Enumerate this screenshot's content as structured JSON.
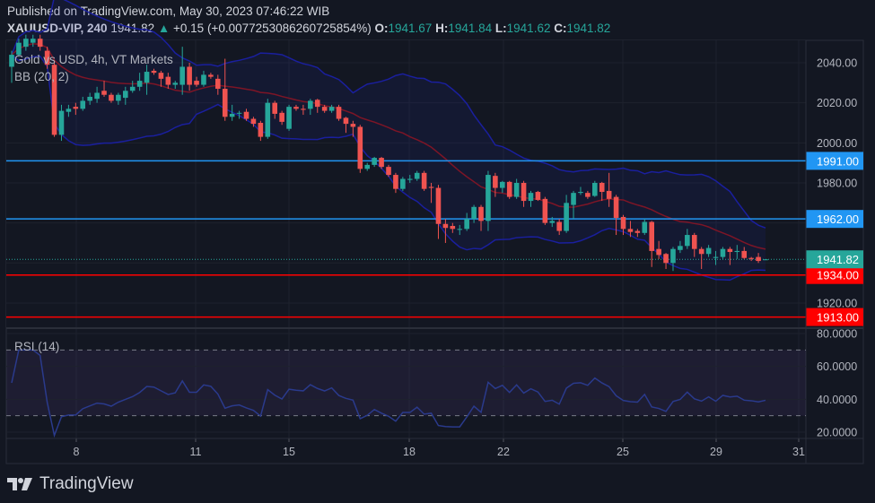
{
  "header": {
    "published": "Published on TradingView.com, May 30, 2023 07:46:22 WIB",
    "symbol": "XAUUSD-VIP, 240",
    "last": "1941.82",
    "change": "+0.15 (+0.0077253086260725854%)",
    "o_label": "O:",
    "o": "1941.67",
    "h_label": "H:",
    "h": "1941.84",
    "l_label": "L:",
    "l": "1941.62",
    "c_label": "C:",
    "c": "1941.82"
  },
  "legend": {
    "title": "Gold vs USD, 4h, VT Markets",
    "bb": "BB (20, 2)",
    "rsi": "RSI (14)"
  },
  "footer": {
    "brand": "TradingView"
  },
  "colors": {
    "background": "#131722",
    "up": "#26a69a",
    "down": "#ef5350",
    "bb_band": "#1a1f9e",
    "bb_basis": "#7d1526",
    "support_blue": "#2196f3",
    "support_red": "#ff0000",
    "rsi_line": "#2a3a8c",
    "rsi_band": "#7e57c2"
  },
  "chart_data": [
    {
      "type": "candlestick",
      "title": "Gold vs USD, 4h, VT Markets",
      "ylim": [
        1905,
        2052
      ],
      "y_ticks": [
        "2040.00",
        "2020.00",
        "2000.00",
        "1980.00",
        "1920.00"
      ],
      "x_ticks": [
        "8",
        "11",
        "15",
        "18",
        "22",
        "25",
        "29",
        "31"
      ],
      "grid": true,
      "indicator": "BB (20, 2)",
      "horizontal_lines": [
        {
          "value": 1991.0,
          "label": "1991.00",
          "color": "#2196f3"
        },
        {
          "value": 1962.0,
          "label": "1962.00",
          "color": "#2196f3"
        },
        {
          "value": 1934.0,
          "label": "1934.00",
          "color": "#ff0000"
        },
        {
          "value": 1913.0,
          "label": "1913.00",
          "color": "#ff0000"
        }
      ],
      "last_price": {
        "value": 1941.82,
        "label": "1941.82"
      },
      "ohlc": [
        [
          2038,
          2046,
          2030,
          2044
        ],
        [
          2044,
          2052,
          2043,
          2050
        ],
        [
          2048,
          2054,
          2046,
          2052
        ],
        [
          2050,
          2054,
          2048,
          2052
        ],
        [
          2052,
          2054,
          2046,
          2048
        ],
        [
          2046,
          2048,
          2037,
          2039
        ],
        [
          2039,
          2041,
          2003,
          2004
        ],
        [
          2004,
          2019,
          2001,
          2016
        ],
        [
          2015.5,
          2019,
          2013,
          2017
        ],
        [
          2018,
          2020,
          2014,
          2017
        ],
        [
          2017,
          2023,
          2016,
          2021
        ],
        [
          2021,
          2025,
          2019,
          2023
        ],
        [
          2022,
          2028,
          2020,
          2025
        ],
        [
          2026,
          2031,
          2023,
          2024
        ],
        [
          2024,
          2025,
          2020,
          2021
        ],
        [
          2021,
          2025,
          2019,
          2024
        ],
        [
          2022.5,
          2028,
          2019,
          2026
        ],
        [
          2026,
          2031,
          2025,
          2028
        ],
        [
          2028,
          2035,
          2026,
          2031
        ],
        [
          2030,
          2039,
          2024,
          2035.5
        ],
        [
          2036,
          2037,
          2034,
          2035
        ],
        [
          2035,
          2036,
          2028,
          2032
        ],
        [
          2033,
          2035,
          2027,
          2029
        ],
        [
          2029,
          2031,
          2027,
          2030
        ],
        [
          2029,
          2048,
          2024,
          2038
        ],
        [
          2038,
          2040,
          2026,
          2029
        ],
        [
          2031,
          2033,
          2028,
          2029
        ],
        [
          2029,
          2036,
          2028,
          2034
        ],
        [
          2034,
          2035,
          2032,
          2033
        ],
        [
          2032,
          2034,
          2024,
          2027
        ],
        [
          2027,
          2042,
          2011,
          2013
        ],
        [
          2013,
          2019,
          2011,
          2014.5
        ],
        [
          2015,
          2016,
          2012,
          2015
        ],
        [
          2015.5,
          2017,
          2011,
          2012
        ],
        [
          2012,
          2013,
          2008,
          2009.5
        ],
        [
          2010,
          2011,
          2001,
          2003
        ],
        [
          2003,
          2022,
          2002,
          2020
        ],
        [
          2020,
          2021,
          2012,
          2014.5
        ],
        [
          2015,
          2016,
          2009,
          2010.5
        ],
        [
          2007,
          2019,
          2006,
          2018
        ],
        [
          2018,
          2019,
          2016,
          2017
        ],
        [
          2017,
          2019,
          2014,
          2016.5
        ],
        [
          2017,
          2022,
          2014,
          2021
        ],
        [
          2021.5,
          2022,
          2015,
          2018
        ],
        [
          2018,
          2019,
          2015,
          2016
        ],
        [
          2016,
          2019,
          2015,
          2018
        ],
        [
          2018,
          2019,
          2011,
          2012
        ],
        [
          2012.5,
          2013,
          2005,
          2009.5
        ],
        [
          2009.5,
          2011,
          2003,
          2008
        ],
        [
          2008,
          2009,
          1985,
          1987
        ],
        [
          1987,
          1990,
          1986,
          1989
        ],
        [
          1989,
          1993,
          1988,
          1992.5
        ],
        [
          1992.5,
          1993,
          1987,
          1988
        ],
        [
          1988,
          1989,
          1983,
          1984
        ],
        [
          1984,
          1985,
          1975,
          1977
        ],
        [
          1977,
          1983,
          1976,
          1982
        ],
        [
          1981.5,
          1984,
          1980,
          1982
        ],
        [
          1982,
          1986,
          1981,
          1985
        ],
        [
          1985,
          1986,
          1976,
          1977
        ],
        [
          1978,
          1980,
          1970,
          1977.5
        ],
        [
          1977.5,
          1979,
          1952,
          1959.5
        ],
        [
          1959.5,
          1962,
          1950,
          1957.5
        ],
        [
          1958.5,
          1960,
          1955,
          1957
        ],
        [
          1957,
          1959,
          1954,
          1957
        ],
        [
          1957,
          1965,
          1956,
          1962
        ],
        [
          1962,
          1969,
          1960,
          1968
        ],
        [
          1968,
          1969,
          1956,
          1961
        ],
        [
          1961,
          1986,
          1956,
          1984
        ],
        [
          1983.5,
          1985,
          1973,
          1977.5
        ],
        [
          1977.5,
          1981,
          1975,
          1980.5
        ],
        [
          1980.5,
          1981,
          1972,
          1973
        ],
        [
          1973,
          1982,
          1972,
          1980
        ],
        [
          1980,
          1981,
          1968,
          1971
        ],
        [
          1971,
          1976,
          1968,
          1975
        ],
        [
          1975.5,
          1976,
          1971,
          1971.5
        ],
        [
          1972,
          1973,
          1959,
          1960
        ],
        [
          1960,
          1963,
          1958,
          1961
        ],
        [
          1960.5,
          1962,
          1954,
          1956
        ],
        [
          1956,
          1974,
          1955,
          1970
        ],
        [
          1969,
          1976,
          1962,
          1975
        ],
        [
          1975,
          1978,
          1974,
          1975.5
        ],
        [
          1975,
          1976,
          1972,
          1973
        ],
        [
          1973.5,
          1981,
          1973,
          1980
        ],
        [
          1980,
          1980.5,
          1971,
          1975.5
        ],
        [
          1976,
          1985,
          1968,
          1972
        ],
        [
          1973,
          1974,
          1954,
          1962.5
        ],
        [
          1963,
          1964,
          1954,
          1957
        ],
        [
          1957,
          1961,
          1953,
          1955.5
        ],
        [
          1956,
          1957,
          1953,
          1955
        ],
        [
          1955,
          1962,
          1954,
          1960.5
        ],
        [
          1960.5,
          1961,
          1938,
          1946
        ],
        [
          1947,
          1951,
          1942,
          1944
        ],
        [
          1944.5,
          1945,
          1937,
          1940
        ],
        [
          1940,
          1948,
          1936,
          1947
        ],
        [
          1946.5,
          1951,
          1945,
          1948.5
        ],
        [
          1948.5,
          1957,
          1947,
          1954
        ],
        [
          1954,
          1955,
          1943,
          1947
        ],
        [
          1947,
          1948,
          1937,
          1944.5
        ],
        [
          1944.5,
          1949,
          1943,
          1947.5
        ],
        [
          1942.5,
          1946,
          1939,
          1943
        ],
        [
          1943,
          1948,
          1942,
          1947
        ],
        [
          1947,
          1948,
          1939,
          1945.5
        ],
        [
          1945.5,
          1949,
          1942,
          1946
        ],
        [
          1946,
          1948,
          1942,
          1942.5
        ],
        [
          1942.5,
          1943,
          1941,
          1942
        ],
        [
          1943,
          1945,
          1940,
          1941
        ],
        [
          1941.67,
          1941.84,
          1941.62,
          1941.82
        ]
      ]
    },
    {
      "type": "line",
      "title": "RSI (14)",
      "ylim": [
        15,
        83
      ],
      "y_ticks": [
        "80.0000",
        "60.0000",
        "40.0000",
        "20.0000"
      ],
      "bands": [
        30,
        70
      ]
    }
  ]
}
